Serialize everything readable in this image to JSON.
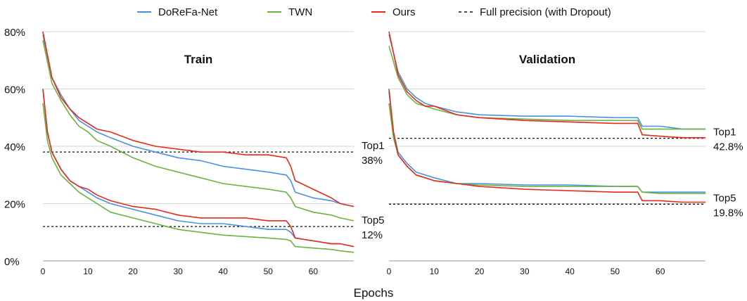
{
  "legend": [
    {
      "label": "DoReFa-Net",
      "color": "#4a90e2",
      "dash": false
    },
    {
      "label": "TWN",
      "color": "#6bb33f",
      "dash": false
    },
    {
      "label": "Ours",
      "color": "#e8291c",
      "dash": false
    },
    {
      "label": "Full precision (with Dropout)",
      "color": "#111111",
      "dash": true
    }
  ],
  "xlabel": "Epochs",
  "chart_data": [
    {
      "type": "line",
      "title": "Train",
      "xlim": [
        0,
        69
      ],
      "ylim": [
        0,
        80
      ],
      "y_ticks": [
        "0%",
        "20%",
        "40%",
        "60%",
        "80%"
      ],
      "x_ticks": [
        "0",
        "10",
        "20",
        "30",
        "40",
        "50",
        "60"
      ],
      "grid": true,
      "annotations": [
        {
          "text": "Top1",
          "sub": "38%",
          "value": 38
        },
        {
          "text": "Top5",
          "sub": "12%",
          "value": 12
        }
      ],
      "series": [
        {
          "name": "DoReFa-Net",
          "group": "Top1",
          "points": [
            [
              0,
              79
            ],
            [
              2,
              64
            ],
            [
              4,
              58
            ],
            [
              6,
              53
            ],
            [
              8,
              49
            ],
            [
              10,
              47
            ],
            [
              12,
              45
            ],
            [
              15,
              43
            ],
            [
              20,
              40
            ],
            [
              25,
              38
            ],
            [
              30,
              36
            ],
            [
              35,
              35
            ],
            [
              40,
              33
            ],
            [
              45,
              32
            ],
            [
              50,
              31
            ],
            [
              54,
              30
            ],
            [
              55,
              28
            ],
            [
              56,
              24
            ],
            [
              60,
              22
            ],
            [
              64,
              21
            ],
            [
              66,
              20
            ],
            [
              69,
              19
            ]
          ]
        },
        {
          "name": "TWN",
          "group": "Top1",
          "points": [
            [
              0,
              77
            ],
            [
              2,
              62
            ],
            [
              4,
              56
            ],
            [
              6,
              51
            ],
            [
              8,
              47
            ],
            [
              10,
              45
            ],
            [
              12,
              42
            ],
            [
              15,
              40
            ],
            [
              20,
              36
            ],
            [
              25,
              33
            ],
            [
              30,
              31
            ],
            [
              35,
              29
            ],
            [
              40,
              27
            ],
            [
              45,
              26
            ],
            [
              50,
              25
            ],
            [
              54,
              24
            ],
            [
              55,
              22
            ],
            [
              56,
              19
            ],
            [
              60,
              17
            ],
            [
              64,
              16
            ],
            [
              66,
              15
            ],
            [
              69,
              14
            ]
          ]
        },
        {
          "name": "Ours",
          "group": "Top1",
          "points": [
            [
              0,
              80
            ],
            [
              2,
              64
            ],
            [
              4,
              57
            ],
            [
              6,
              53
            ],
            [
              8,
              50
            ],
            [
              10,
              48
            ],
            [
              12,
              46
            ],
            [
              15,
              45
            ],
            [
              20,
              42
            ],
            [
              25,
              40
            ],
            [
              30,
              39
            ],
            [
              35,
              38
            ],
            [
              40,
              38
            ],
            [
              45,
              37
            ],
            [
              50,
              37
            ],
            [
              54,
              36
            ],
            [
              55,
              33
            ],
            [
              56,
              28
            ],
            [
              60,
              25
            ],
            [
              64,
              22
            ],
            [
              66,
              20
            ],
            [
              69,
              19
            ]
          ]
        },
        {
          "name": "DoReFa-Net",
          "group": "Top5",
          "points": [
            [
              0,
              60
            ],
            [
              1,
              45
            ],
            [
              2,
              38
            ],
            [
              4,
              32
            ],
            [
              6,
              28
            ],
            [
              8,
              26
            ],
            [
              10,
              24
            ],
            [
              12,
              22
            ],
            [
              15,
              20
            ],
            [
              20,
              18
            ],
            [
              25,
              16
            ],
            [
              30,
              14
            ],
            [
              35,
              13
            ],
            [
              40,
              13
            ],
            [
              45,
              12
            ],
            [
              50,
              11
            ],
            [
              54,
              11
            ],
            [
              55,
              10
            ],
            [
              56,
              8
            ],
            [
              60,
              7
            ],
            [
              64,
              6
            ],
            [
              66,
              6
            ],
            [
              69,
              5
            ]
          ]
        },
        {
          "name": "TWN",
          "group": "Top5",
          "points": [
            [
              0,
              55
            ],
            [
              1,
              42
            ],
            [
              2,
              36
            ],
            [
              4,
              30
            ],
            [
              6,
              27
            ],
            [
              8,
              24
            ],
            [
              10,
              22
            ],
            [
              12,
              20
            ],
            [
              15,
              17
            ],
            [
              20,
              15
            ],
            [
              25,
              13
            ],
            [
              30,
              11
            ],
            [
              35,
              10
            ],
            [
              40,
              9
            ],
            [
              45,
              8.5
            ],
            [
              50,
              8
            ],
            [
              54,
              7.5
            ],
            [
              55,
              7
            ],
            [
              56,
              5
            ],
            [
              60,
              4.5
            ],
            [
              64,
              4
            ],
            [
              66,
              3.5
            ],
            [
              69,
              3
            ]
          ]
        },
        {
          "name": "Ours",
          "group": "Top5",
          "points": [
            [
              0,
              60
            ],
            [
              1,
              45
            ],
            [
              2,
              38
            ],
            [
              4,
              32
            ],
            [
              6,
              28
            ],
            [
              8,
              26
            ],
            [
              10,
              25
            ],
            [
              12,
              23
            ],
            [
              15,
              21
            ],
            [
              20,
              19
            ],
            [
              25,
              18
            ],
            [
              30,
              16
            ],
            [
              35,
              15
            ],
            [
              40,
              15
            ],
            [
              45,
              15
            ],
            [
              50,
              14
            ],
            [
              54,
              14
            ],
            [
              55,
              12
            ],
            [
              56,
              8
            ],
            [
              60,
              7
            ],
            [
              64,
              6
            ],
            [
              66,
              6
            ],
            [
              69,
              5
            ]
          ]
        }
      ]
    },
    {
      "type": "line",
      "title": "Validation",
      "xlim": [
        0,
        70
      ],
      "ylim": [
        0,
        80
      ],
      "x_ticks": [
        "0",
        "10",
        "20",
        "30",
        "40",
        "50",
        "60"
      ],
      "grid": true,
      "annotations": [
        {
          "text": "Top1",
          "sub": "42.8%",
          "value": 42.8
        },
        {
          "text": "Top5",
          "sub": "19.8%",
          "value": 19.8
        }
      ],
      "series": [
        {
          "name": "DoReFa-Net",
          "group": "Top1",
          "points": [
            [
              0,
              79
            ],
            [
              2,
              66
            ],
            [
              4,
              60
            ],
            [
              6,
              57
            ],
            [
              8,
              55
            ],
            [
              10,
              54
            ],
            [
              15,
              52
            ],
            [
              20,
              51
            ],
            [
              30,
              50.5
            ],
            [
              40,
              50.5
            ],
            [
              50,
              50
            ],
            [
              55,
              50
            ],
            [
              56,
              47
            ],
            [
              60,
              47
            ],
            [
              65,
              46
            ],
            [
              70,
              46
            ]
          ]
        },
        {
          "name": "TWN",
          "group": "Top1",
          "points": [
            [
              0,
              75
            ],
            [
              2,
              64
            ],
            [
              4,
              58
            ],
            [
              6,
              55
            ],
            [
              8,
              54
            ],
            [
              10,
              53
            ],
            [
              15,
              51
            ],
            [
              20,
              50
            ],
            [
              30,
              49.5
            ],
            [
              40,
              49
            ],
            [
              50,
              49
            ],
            [
              55,
              49
            ],
            [
              56,
              46
            ],
            [
              60,
              46
            ],
            [
              65,
              46
            ],
            [
              70,
              46
            ]
          ]
        },
        {
          "name": "Ours",
          "group": "Top1",
          "points": [
            [
              0,
              80
            ],
            [
              2,
              65
            ],
            [
              4,
              59
            ],
            [
              6,
              56
            ],
            [
              8,
              54
            ],
            [
              10,
              54
            ],
            [
              15,
              51
            ],
            [
              20,
              50
            ],
            [
              30,
              49
            ],
            [
              40,
              48.5
            ],
            [
              50,
              48
            ],
            [
              55,
              48
            ],
            [
              56,
              44
            ],
            [
              60,
              43.5
            ],
            [
              65,
              43
            ],
            [
              70,
              43
            ]
          ]
        },
        {
          "name": "DoReFa-Net",
          "group": "Top5",
          "points": [
            [
              0,
              59
            ],
            [
              1,
              45
            ],
            [
              2,
              38
            ],
            [
              4,
              34
            ],
            [
              6,
              31
            ],
            [
              8,
              30
            ],
            [
              10,
              29
            ],
            [
              15,
              27
            ],
            [
              20,
              27
            ],
            [
              30,
              26.5
            ],
            [
              40,
              26.5
            ],
            [
              50,
              26
            ],
            [
              55,
              26
            ],
            [
              56,
              24
            ],
            [
              60,
              24
            ],
            [
              65,
              24
            ],
            [
              70,
              24
            ]
          ]
        },
        {
          "name": "TWN",
          "group": "Top5",
          "points": [
            [
              0,
              55
            ],
            [
              1,
              43
            ],
            [
              2,
              37
            ],
            [
              4,
              33
            ],
            [
              6,
              30
            ],
            [
              8,
              29
            ],
            [
              10,
              28
            ],
            [
              15,
              27
            ],
            [
              20,
              26.5
            ],
            [
              30,
              26
            ],
            [
              40,
              26
            ],
            [
              50,
              26
            ],
            [
              55,
              26
            ],
            [
              56,
              24
            ],
            [
              60,
              23.5
            ],
            [
              65,
              23.5
            ],
            [
              70,
              23.5
            ]
          ]
        },
        {
          "name": "Ours",
          "group": "Top5",
          "points": [
            [
              0,
              60
            ],
            [
              1,
              45
            ],
            [
              2,
              37
            ],
            [
              4,
              33
            ],
            [
              6,
              30
            ],
            [
              8,
              29
            ],
            [
              10,
              28
            ],
            [
              15,
              27
            ],
            [
              20,
              26
            ],
            [
              30,
              25
            ],
            [
              40,
              24.5
            ],
            [
              50,
              24
            ],
            [
              55,
              24
            ],
            [
              56,
              21
            ],
            [
              60,
              21
            ],
            [
              65,
              20.5
            ],
            [
              70,
              20.5
            ]
          ]
        }
      ]
    }
  ]
}
